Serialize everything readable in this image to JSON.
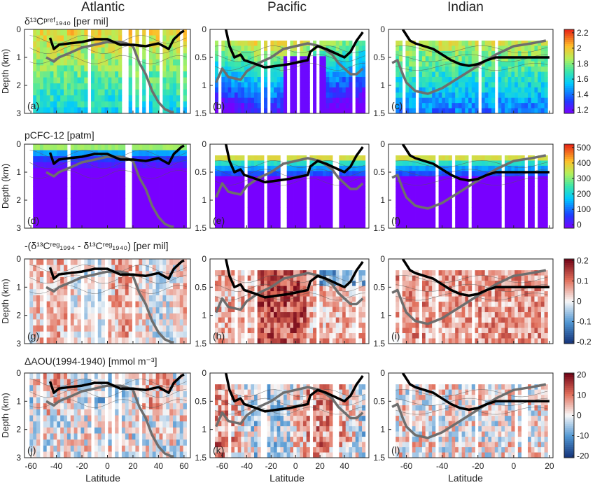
{
  "figure": {
    "column_titles": [
      "Atlantic",
      "Pacific",
      "Indian"
    ],
    "xlabel": "Latitude",
    "ylabel": "Depth (km)"
  },
  "chart_data": {
    "type": "heatmap",
    "rows": [
      {
        "row_label": "δ¹³Cᵖʳᵉᶠ₁₉₄₀ [per mil]",
        "colormap": "jet",
        "colorbar_ticks": [
          "2.2",
          "2",
          "1.8",
          "1.6",
          "1.4",
          "1.2"
        ],
        "colorbar_range": [
          1.2,
          2.2
        ],
        "panel_letters": [
          "(a)",
          "(b)",
          "(c)"
        ]
      },
      {
        "row_label": "pCFC-12 [patm]",
        "colormap": "jet",
        "colorbar_ticks": [
          "500",
          "400",
          "300",
          "200",
          "100",
          "0"
        ],
        "colorbar_range": [
          0,
          500
        ],
        "panel_letters": [
          "(d)",
          "(e)",
          "(f)"
        ]
      },
      {
        "row_label": "-(δ¹³Cʳᵉᵍ₁₉₉₄ - δ¹³Cʳᵉᵍ₁₉₄₀) [per mil]",
        "colormap": "diverging",
        "colorbar_ticks": [
          "0.2",
          "0.1",
          "0",
          "-0.1",
          "-0.2"
        ],
        "colorbar_range": [
          -0.2,
          0.2
        ],
        "panel_letters": [
          "(g)",
          "(h)",
          "(i)"
        ]
      },
      {
        "row_label": "ΔAOU(1994-1940) [mmol m⁻³]",
        "colormap": "diverging",
        "colorbar_ticks": [
          "20",
          "10",
          "0",
          "-10",
          "-20"
        ],
        "colorbar_range": [
          -20,
          20
        ],
        "panel_letters": [
          "(j)",
          "(k)",
          "(l)"
        ]
      }
    ],
    "columns": [
      {
        "basin": "Atlantic",
        "xlim": [
          -65,
          65
        ],
        "ylim": [
          0,
          3
        ],
        "xticks": [
          "-60",
          "-40",
          "-20",
          "0",
          "20",
          "40",
          "60"
        ],
        "xtick_values": [
          -60,
          -40,
          -20,
          0,
          20,
          40,
          60
        ],
        "yticks": [
          "0",
          "1",
          "2",
          "3"
        ],
        "ytick_values": [
          0,
          1,
          2,
          3
        ],
        "data_top_depth": 0.0,
        "black_line": [
          [
            -45,
            0.3
          ],
          [
            -42,
            0.7
          ],
          [
            -38,
            0.55
          ],
          [
            -30,
            0.5
          ],
          [
            -20,
            0.45
          ],
          [
            -10,
            0.35
          ],
          [
            0,
            0.35
          ],
          [
            10,
            0.55
          ],
          [
            20,
            0.55
          ],
          [
            30,
            0.6
          ],
          [
            40,
            0.5
          ],
          [
            48,
            0.7
          ],
          [
            52,
            0.35
          ],
          [
            58,
            0.1
          ],
          [
            60,
            0.05
          ]
        ],
        "gray_line": [
          [
            -48,
            1.0
          ],
          [
            -42,
            1.15
          ],
          [
            -38,
            1.0
          ],
          [
            -30,
            0.85
          ],
          [
            -20,
            0.65
          ],
          [
            -10,
            0.55
          ],
          [
            0,
            0.45
          ],
          [
            10,
            0.45
          ],
          [
            15,
            0.5
          ],
          [
            20,
            0.6
          ],
          [
            25,
            1.2
          ],
          [
            30,
            1.6
          ],
          [
            35,
            2.2
          ],
          [
            40,
            2.6
          ],
          [
            45,
            2.85
          ],
          [
            50,
            2.95
          ],
          [
            52,
            2.95
          ]
        ]
      },
      {
        "basin": "Pacific",
        "xlim": [
          -70,
          60
        ],
        "ylim": [
          0,
          1.5
        ],
        "xticks": [
          "-60",
          "-40",
          "-20",
          "0",
          "20",
          "40"
        ],
        "xtick_values": [
          -60,
          -40,
          -20,
          0,
          20,
          40
        ],
        "yticks": [
          "0",
          "0.5",
          "1",
          "1.5"
        ],
        "ytick_values": [
          0,
          0.5,
          1,
          1.5
        ],
        "data_top_depth": 0.2,
        "black_line": [
          [
            -57,
            0.0
          ],
          [
            -54,
            0.3
          ],
          [
            -50,
            0.5
          ],
          [
            -45,
            0.45
          ],
          [
            -42,
            0.55
          ],
          [
            -35,
            0.6
          ],
          [
            -25,
            0.68
          ],
          [
            -15,
            0.65
          ],
          [
            -5,
            0.62
          ],
          [
            10,
            0.55
          ],
          [
            12,
            0.4
          ],
          [
            18,
            0.3
          ],
          [
            25,
            0.35
          ],
          [
            35,
            0.45
          ],
          [
            40,
            0.5
          ],
          [
            45,
            0.4
          ],
          [
            50,
            0.2
          ],
          [
            55,
            0.05
          ]
        ],
        "gray_line": [
          [
            -65,
            0.95
          ],
          [
            -60,
            0.7
          ],
          [
            -55,
            0.85
          ],
          [
            -45,
            0.9
          ],
          [
            -40,
            0.75
          ],
          [
            -30,
            0.6
          ],
          [
            -20,
            0.5
          ],
          [
            -10,
            0.35
          ],
          [
            0,
            0.3
          ],
          [
            10,
            0.25
          ],
          [
            20,
            0.3
          ],
          [
            30,
            0.45
          ],
          [
            35,
            0.6
          ],
          [
            45,
            0.8
          ],
          [
            50,
            0.8
          ],
          [
            55,
            0.7
          ]
        ]
      },
      {
        "basin": "Indian",
        "xlim": [
          -70,
          22
        ],
        "ylim": [
          0,
          1.5
        ],
        "xticks": [
          "-60",
          "-40",
          "-20",
          "0",
          "20"
        ],
        "xtick_values": [
          -60,
          -40,
          -20,
          0,
          20
        ],
        "yticks": [
          "0",
          "0.5",
          "1",
          "1.5"
        ],
        "ytick_values": [
          0,
          0.5,
          1,
          1.5
        ],
        "data_top_depth": 0.2,
        "black_line": [
          [
            -62,
            0.0
          ],
          [
            -58,
            0.2
          ],
          [
            -55,
            0.25
          ],
          [
            -50,
            0.3
          ],
          [
            -45,
            0.35
          ],
          [
            -40,
            0.45
          ],
          [
            -35,
            0.55
          ],
          [
            -30,
            0.62
          ],
          [
            -25,
            0.65
          ],
          [
            -20,
            0.62
          ],
          [
            -15,
            0.55
          ],
          [
            -10,
            0.5
          ],
          [
            0,
            0.5
          ],
          [
            10,
            0.5
          ],
          [
            20,
            0.5
          ]
        ],
        "gray_line": [
          [
            -68,
            0.6
          ],
          [
            -65,
            0.55
          ],
          [
            -62,
            0.8
          ],
          [
            -60,
            0.95
          ],
          [
            -55,
            1.1
          ],
          [
            -48,
            1.15
          ],
          [
            -40,
            1.05
          ],
          [
            -30,
            0.85
          ],
          [
            -20,
            0.65
          ],
          [
            -10,
            0.45
          ],
          [
            0,
            0.3
          ],
          [
            10,
            0.25
          ],
          [
            18,
            0.2
          ]
        ]
      }
    ]
  }
}
